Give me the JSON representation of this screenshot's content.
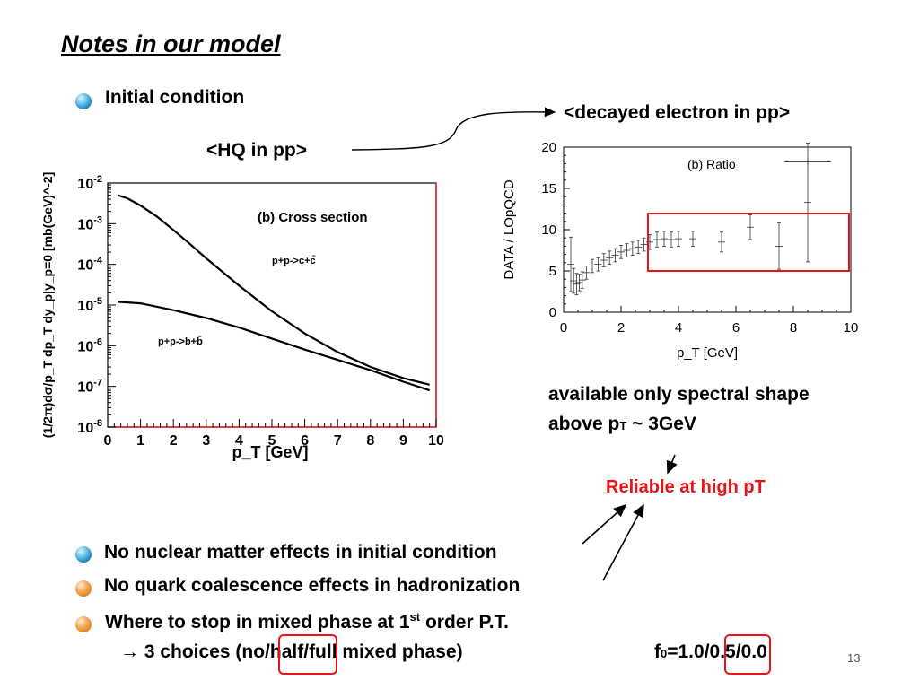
{
  "slide": {
    "title": "Notes in our model",
    "page_number": "13",
    "bullet_initial": "Initial condition",
    "label_hq_pp": "<HQ in pp>",
    "label_decayed": "<decayed electron in pp>",
    "note_line1": "available only spectral shape",
    "note_line2_pre": "above p",
    "note_line2_sub": "T",
    "note_line2_post": " ~ 3GeV",
    "reliable": "Reliable at high pT",
    "bullet_nuclear": "No nuclear matter effects in initial condition",
    "bullet_coalescence": "No quark coalescence effects in hadronization",
    "bullet_mixed_pre": "Where to stop in mixed phase at 1",
    "bullet_mixed_sup": "st",
    "bullet_mixed_post": " order P.T.",
    "choices_arrow": "→",
    "choices_pre": " 3 choices (no",
    "choices_half": "/half/",
    "choices_post": "full mixed phase)",
    "f0_pre": "f",
    "f0_sub": "0",
    "f0_eq": "=1.0/",
    "f0_boxed": "0.5",
    "f0_post": "/0.0",
    "colors": {
      "accent_red": "#e8141a",
      "bullet_blue": "#1a7fb8",
      "bullet_orange": "#e0801e"
    }
  },
  "chart_data": [
    {
      "type": "line",
      "panel_label": "(b) Cross section",
      "xlabel": "p_T [GeV]",
      "ylabel": "(1/2π)dσ/p_T dp_T dy_p|y_p=0 [mb(GeV)^-2]",
      "xlim": [
        0,
        10
      ],
      "ylim": [
        1e-08,
        0.01
      ],
      "y_scale": "log",
      "x_ticks": [
        "0",
        "1",
        "2",
        "3",
        "4",
        "5",
        "6",
        "7",
        "8",
        "9",
        "10"
      ],
      "y_ticks": [
        "10-2",
        "10-3",
        "10-4",
        "10-5",
        "10-6",
        "10-7",
        "10-8"
      ],
      "series": [
        {
          "name": "p+p->c+c̄",
          "x": [
            0.3,
            0.6,
            1.0,
            1.5,
            2.0,
            2.5,
            3.0,
            4.0,
            5.0,
            6.0,
            7.0,
            8.0,
            9.0,
            9.8
          ],
          "y": [
            0.005,
            0.0042,
            0.0028,
            0.0015,
            0.0007,
            0.00032,
            0.00014,
            3e-05,
            7e-06,
            2e-06,
            7e-07,
            3e-07,
            1.6e-07,
            1.1e-07
          ]
        },
        {
          "name": "p+p->b+b̄",
          "x": [
            0.3,
            1.0,
            2.0,
            3.0,
            4.0,
            5.0,
            6.0,
            7.0,
            8.0,
            9.0,
            9.8
          ],
          "y": [
            1.2e-05,
            1.1e-05,
            7.5e-06,
            4.8e-06,
            2.8e-06,
            1.5e-06,
            8e-07,
            4.5e-07,
            2.5e-07,
            1.3e-07,
            8e-08
          ]
        }
      ]
    },
    {
      "type": "scatter",
      "panel_label": "(b) Ratio",
      "xlabel": "p_T [GeV]",
      "ylabel": "DATA / LOpQCD",
      "xlim": [
        0,
        10
      ],
      "ylim": [
        0,
        20
      ],
      "x_ticks": [
        "0",
        "2",
        "4",
        "6",
        "8",
        "10"
      ],
      "y_ticks": [
        "0",
        "5",
        "10",
        "15",
        "20"
      ],
      "points": [
        {
          "x": 0.25,
          "y": 5.8,
          "err": 3.3
        },
        {
          "x": 0.35,
          "y": 3.8,
          "err": 1.5
        },
        {
          "x": 0.45,
          "y": 3.4,
          "err": 1.3
        },
        {
          "x": 0.55,
          "y": 3.6,
          "err": 1.0
        },
        {
          "x": 0.65,
          "y": 3.9,
          "err": 1.0
        },
        {
          "x": 0.8,
          "y": 4.8,
          "err": 0.8
        },
        {
          "x": 1.0,
          "y": 5.6,
          "err": 0.8
        },
        {
          "x": 1.2,
          "y": 5.8,
          "err": 0.8
        },
        {
          "x": 1.4,
          "y": 6.3,
          "err": 0.8
        },
        {
          "x": 1.6,
          "y": 6.6,
          "err": 0.8
        },
        {
          "x": 1.8,
          "y": 6.9,
          "err": 0.8
        },
        {
          "x": 2.0,
          "y": 7.3,
          "err": 0.8
        },
        {
          "x": 2.2,
          "y": 7.5,
          "err": 0.8
        },
        {
          "x": 2.4,
          "y": 7.7,
          "err": 0.8
        },
        {
          "x": 2.6,
          "y": 7.9,
          "err": 0.8
        },
        {
          "x": 2.8,
          "y": 8.2,
          "err": 0.8
        },
        {
          "x": 3.0,
          "y": 8.5,
          "err": 0.9
        },
        {
          "x": 3.25,
          "y": 8.8,
          "err": 0.9
        },
        {
          "x": 3.5,
          "y": 8.9,
          "err": 0.9
        },
        {
          "x": 3.75,
          "y": 8.8,
          "err": 0.9
        },
        {
          "x": 4.0,
          "y": 8.9,
          "err": 0.9
        },
        {
          "x": 4.5,
          "y": 8.9,
          "err": 0.9
        },
        {
          "x": 5.5,
          "y": 8.5,
          "err": 1.2
        },
        {
          "x": 6.5,
          "y": 10.3,
          "err": 1.5
        },
        {
          "x": 7.5,
          "y": 8.0,
          "err": 2.8
        },
        {
          "x": 8.5,
          "y": 13.3,
          "err": 7.2
        }
      ],
      "legend_marker": {
        "x": 8.5,
        "y": 18.2
      }
    }
  ]
}
